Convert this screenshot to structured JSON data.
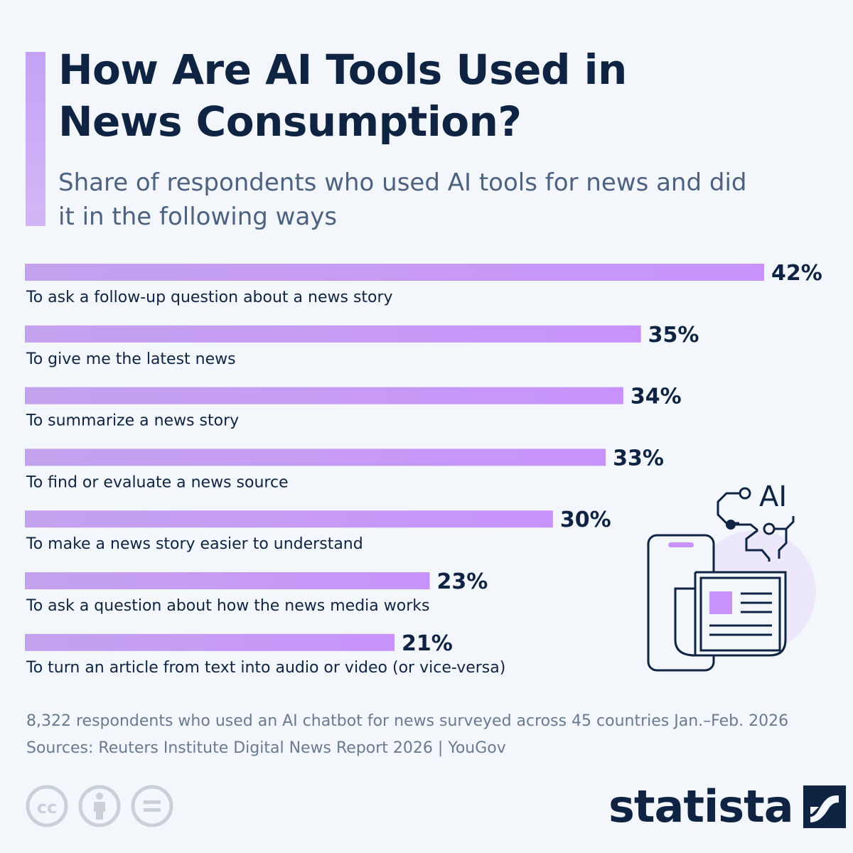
{
  "title": "How Are AI Tools Used in News Consumption?",
  "subtitle": "Share of respondents who used AI tools for news and did it in the following ways",
  "chart_data": {
    "type": "bar",
    "orientation": "horizontal",
    "unit": "%",
    "categories": [
      "To ask a follow-up question about a news story",
      "To give me the latest news",
      "To summarize a news story",
      "To find or evaluate a news source",
      "To make a news story easier to understand",
      "To ask a question about how the news media works",
      "To turn an article from text into audio or video (or vice-versa)"
    ],
    "values": [
      42,
      35,
      34,
      33,
      30,
      23,
      21
    ],
    "value_labels": [
      "42%",
      "35%",
      "34%",
      "33%",
      "30%",
      "23%",
      "21%"
    ],
    "bar_color_start": "#c4a3ee",
    "bar_color_end": "#c793fb",
    "xlim": [
      0,
      42
    ],
    "grid": false
  },
  "illustration": {
    "icon": "ai-news-phone-icon",
    "ai_text": "AI"
  },
  "footnote": {
    "survey": "8,322 respondents who used an AI chatbot for news surveyed across 45 countries Jan.–Feb. 2026",
    "sources": "Sources: Reuters Institute Digital News Report 2026 | YouGov"
  },
  "license_icons": [
    "cc-icon",
    "attribution-icon",
    "no-derivatives-icon"
  ],
  "brand": {
    "name": "statista",
    "logo": "statista-logo-icon"
  },
  "colors": {
    "background": "#f3f7fb",
    "title": "#0f2342",
    "subtitle": "#4d6280",
    "accent": "#c4a3f5",
    "muted": "#c9d0d8"
  }
}
